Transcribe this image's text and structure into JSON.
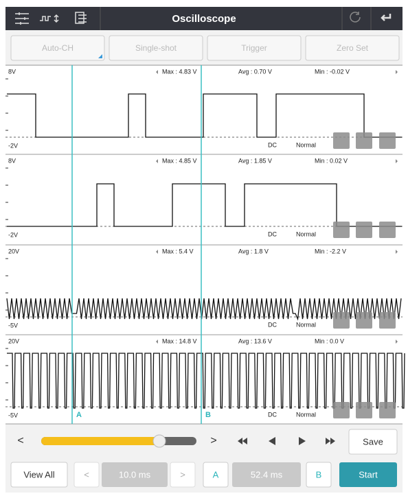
{
  "header": {
    "title": "Oscilloscope"
  },
  "toolbar": [
    "Auto-CH",
    "Single-shot",
    "Trigger",
    "Zero Set"
  ],
  "channels": [
    {
      "top": "8V",
      "bottom": "-2V",
      "max": "Max : 4.83 V",
      "avg": "Avg : 0.70 V",
      "min": "Min : -0.02 V",
      "coupling": "DC",
      "mode": "Normal"
    },
    {
      "top": "8V",
      "bottom": "-2V",
      "max": "Max : 4.85 V",
      "avg": "Avg : 1.85 V",
      "min": "Min : 0.02 V",
      "coupling": "DC",
      "mode": "Normal"
    },
    {
      "top": "20V",
      "bottom": "-5V",
      "max": "Max : 5.4 V",
      "avg": "Avg : 1.8 V",
      "min": "Min : -2.2 V",
      "coupling": "DC",
      "mode": "Normal"
    },
    {
      "top": "20V",
      "bottom": "-5V",
      "max": "Max : 14.8 V",
      "avg": "Avg : 13.6 V",
      "min": "Min : 0.0 V",
      "coupling": "DC",
      "mode": "Normal"
    }
  ],
  "cursors": [
    "A",
    "B"
  ],
  "playback": {
    "prev": "<",
    "next": ">",
    "save": "Save"
  },
  "footer": {
    "view_all": "View All",
    "prev": "<",
    "time_base": "10.0 ms",
    "next": ">",
    "cursor_a": "A",
    "delta": "52.4 ms",
    "cursor_b": "B",
    "start": "Start"
  }
}
